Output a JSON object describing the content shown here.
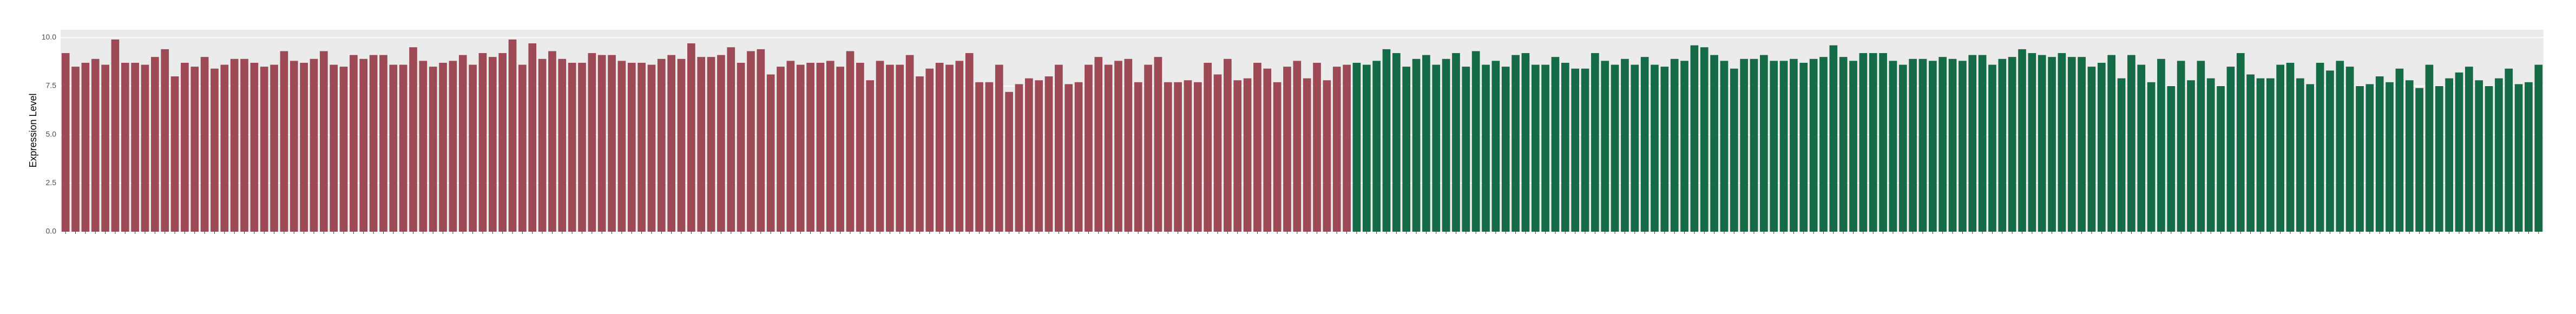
{
  "chart_data": {
    "type": "bar",
    "y_label": "Expression Level",
    "ylim": [
      0,
      10.4
    ],
    "yticks": [
      {
        "value": 0,
        "label": "0.0"
      },
      2.5,
      {
        "value": 5,
        "label": "5.0"
      },
      7.5,
      {
        "value": 10,
        "label": "10.0"
      }
    ],
    "grid": true,
    "series": [
      {
        "color": "#9e4a56",
        "values": [
          9.2,
          8.5,
          8.7,
          8.9,
          8.6,
          9.9,
          8.7,
          8.7,
          8.6,
          9.0,
          9.4,
          8.0,
          8.7,
          8.5,
          9.0,
          8.4,
          8.6,
          8.9,
          8.9,
          8.7,
          8.5,
          8.6,
          9.3,
          8.8,
          8.7,
          8.9,
          9.3,
          8.6,
          8.5,
          9.1,
          8.9,
          9.1,
          9.1,
          8.6,
          8.6,
          9.5,
          8.8,
          8.5,
          8.7,
          8.8,
          9.1,
          8.6,
          9.2,
          9.0,
          9.2,
          9.9,
          8.6,
          9.7,
          8.9,
          9.3,
          8.9,
          8.7,
          8.7,
          9.2,
          9.1,
          9.1,
          8.8,
          8.7,
          8.7,
          8.6,
          8.9,
          9.1,
          8.9,
          9.7,
          9.0,
          9.0,
          9.1,
          9.5,
          8.7,
          9.3,
          9.4,
          8.1,
          8.5,
          8.8,
          8.6,
          8.7,
          8.7,
          8.8,
          8.5,
          9.3,
          8.7,
          7.8,
          8.8,
          8.6,
          8.6,
          9.1,
          8.0,
          8.4,
          8.7,
          8.6,
          8.8,
          9.2,
          7.7,
          7.7,
          8.6,
          7.2,
          7.6,
          7.9,
          7.8,
          8.0,
          8.6,
          7.6,
          7.7,
          8.6,
          9.0,
          8.6,
          8.8,
          8.9,
          7.7,
          8.6,
          9.0,
          7.7,
          7.7,
          7.8,
          7.7,
          8.7,
          8.1,
          8.9,
          7.8,
          7.9,
          8.7,
          8.4,
          7.7,
          8.5,
          8.8,
          7.9,
          8.7,
          7.8,
          8.5,
          8.6
        ]
      },
      {
        "color": "#156b45",
        "values": [
          8.7,
          8.6,
          8.8,
          9.4,
          9.2,
          8.5,
          8.9,
          9.1,
          8.6,
          8.9,
          9.2,
          8.5,
          9.3,
          8.6,
          8.8,
          8.5,
          9.1,
          9.2,
          8.6,
          8.6,
          9.0,
          8.7,
          8.4,
          8.4,
          9.2,
          8.8,
          8.6,
          8.9,
          8.6,
          9.0,
          8.6,
          8.5,
          8.9,
          8.8,
          9.6,
          9.5,
          9.1,
          8.8,
          8.4,
          8.9,
          8.9,
          9.1,
          8.8,
          8.8,
          8.9,
          8.7,
          8.9,
          9.0,
          9.6,
          9.0,
          8.8,
          9.2,
          9.2,
          9.2,
          8.8,
          8.6,
          8.9,
          8.9,
          8.8,
          9.0,
          8.9,
          8.8,
          9.1,
          9.1,
          8.6,
          8.9,
          9.0,
          9.4,
          9.2,
          9.1,
          9.0,
          9.2,
          9.0,
          9.0,
          8.5,
          8.7,
          9.1,
          7.9,
          9.1,
          8.6,
          7.7,
          8.9,
          7.5,
          8.8,
          7.8,
          8.8,
          7.9,
          7.5,
          8.5,
          9.2,
          8.1,
          7.9,
          7.9,
          8.6,
          8.7,
          7.9,
          7.6,
          8.7,
          8.3,
          8.8,
          8.5,
          7.5,
          7.6,
          8.0,
          7.7,
          8.4,
          7.8,
          7.4,
          8.6,
          7.5,
          7.9,
          8.2,
          8.5,
          7.8,
          7.5,
          7.9,
          8.4,
          7.6,
          7.7,
          8.6
        ]
      }
    ]
  }
}
